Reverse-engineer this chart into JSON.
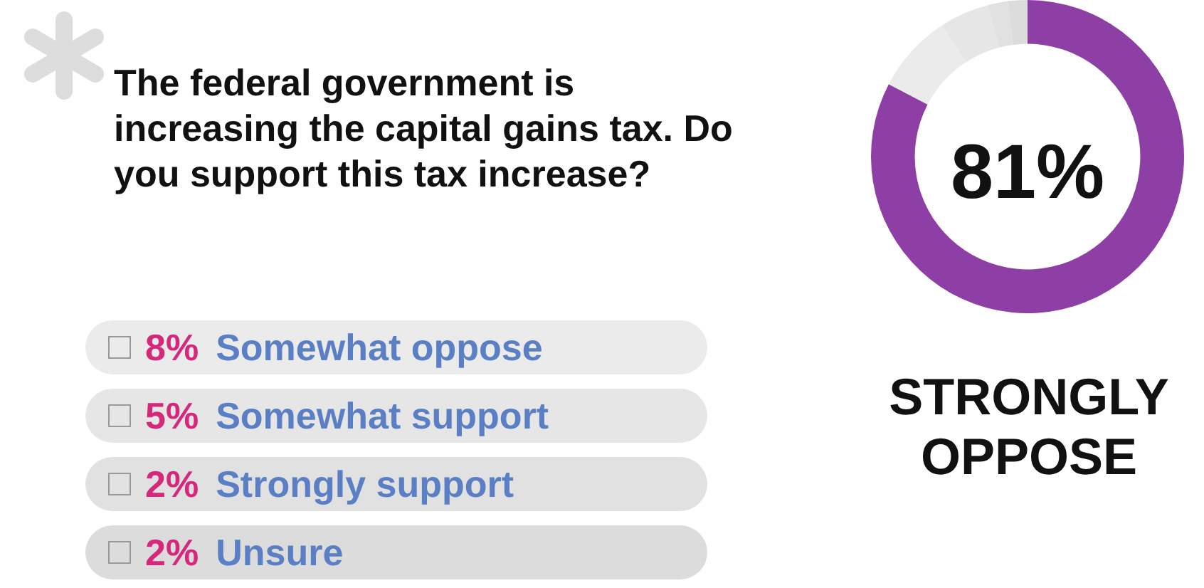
{
  "chart_data": {
    "type": "donut",
    "title": "The federal government is increasing the capital gains tax. Do you support this tax increase?",
    "categories": [
      "STRONGLY OPPOSE",
      "Somewhat oppose",
      "Somewhat support",
      "Strongly support",
      "Unsure"
    ],
    "values": [
      81,
      8,
      5,
      2,
      2
    ],
    "value_labels": [
      "81%",
      "8%",
      "5%",
      "2%",
      "2%"
    ],
    "colors": [
      "#8e3fa6",
      "#ebebeb",
      "#e6e6e6",
      "#e1e1e1",
      "#dcdcdc"
    ],
    "legend": "left"
  }
}
